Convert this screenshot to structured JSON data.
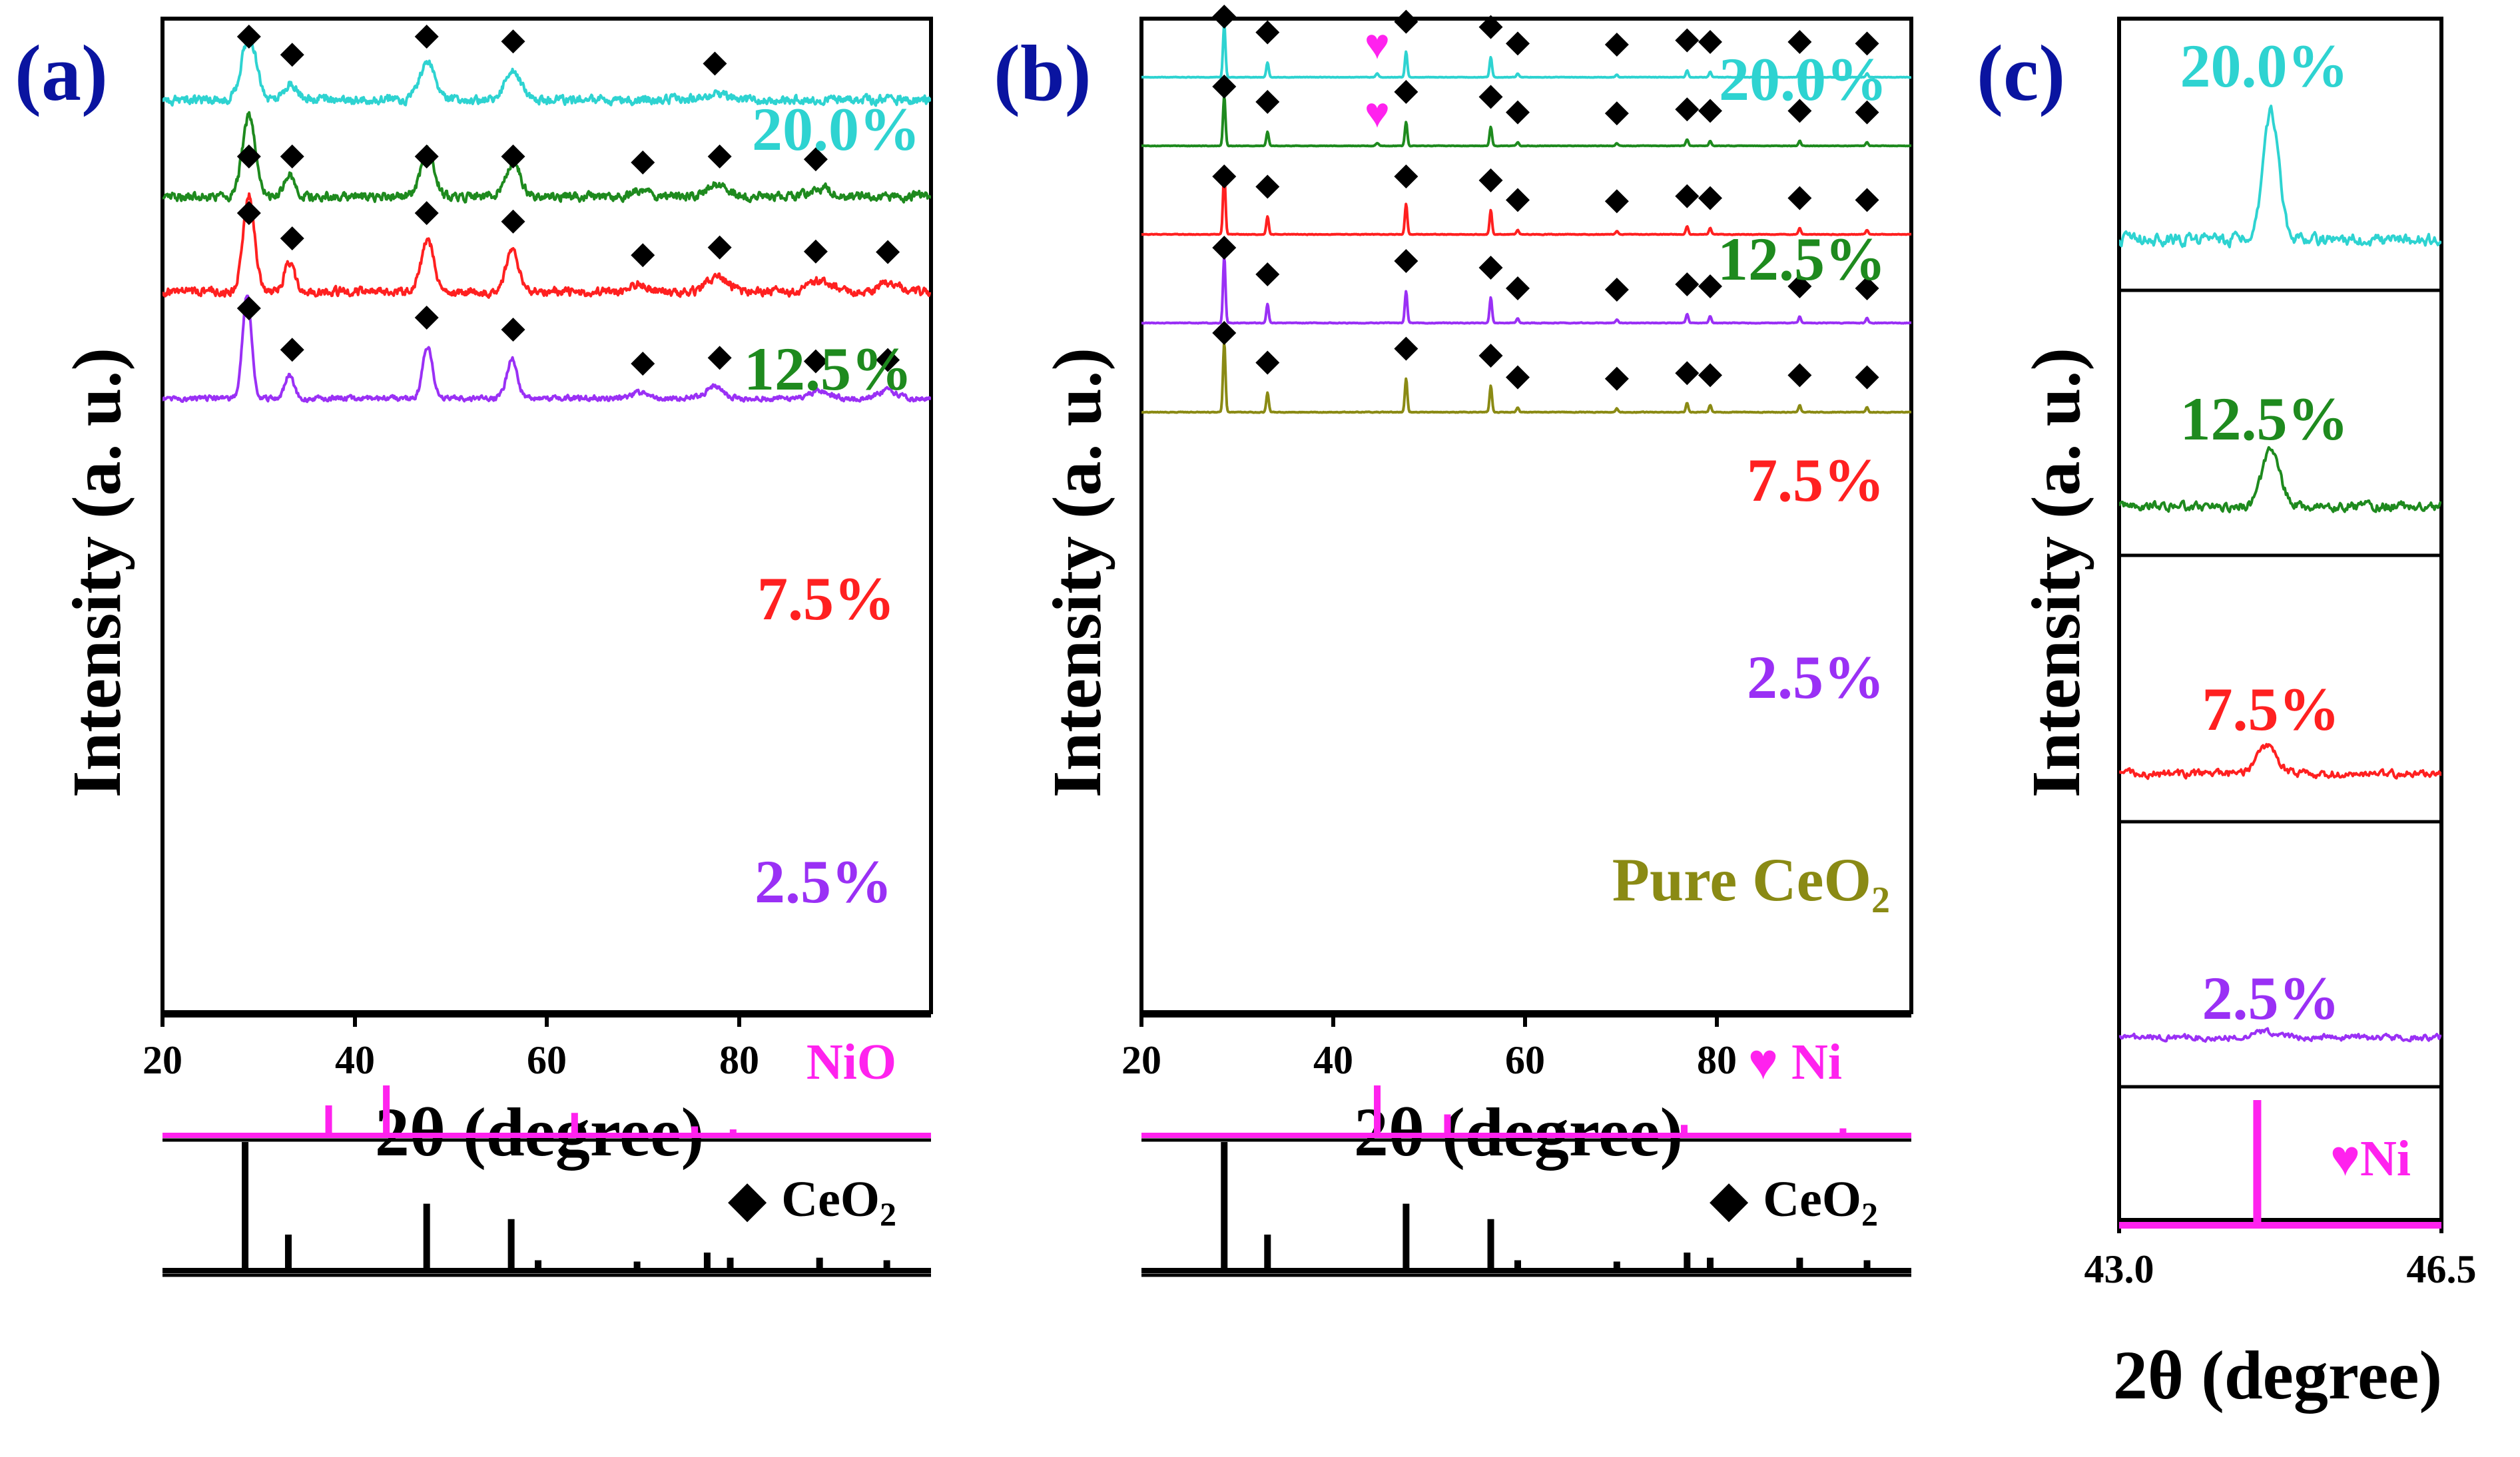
{
  "figure": {
    "colors": {
      "c20": "#2ed3d1",
      "c12": "#1e8a1e",
      "c7": "#ff2020",
      "c2": "#9a30f5",
      "pure": "#8a8a14",
      "ni": "#ff22ee",
      "ceo2": "#000000",
      "panel_label": "#0a14a0"
    },
    "panels": [
      {
        "label": "(a)",
        "ylabel": "Intensity (a. u.)",
        "xlabel": "2θ (degree)",
        "xlim": [
          20,
          100
        ],
        "xticks": [
          "20",
          "40",
          "60",
          "80"
        ],
        "series": [
          {
            "name": "20.0%",
            "color_key": "c20",
            "diamonds": [
              29,
              33.5,
              47.5,
              56.5,
              77.5
            ]
          },
          {
            "name": "12.5%",
            "color_key": "c12",
            "diamonds": [
              29,
              33.5,
              47.5,
              56.5,
              70,
              78,
              88
            ]
          },
          {
            "name": "7.5%",
            "color_key": "c7",
            "diamonds": [
              29,
              33.5,
              47.5,
              56.5,
              70,
              78,
              88,
              95.5
            ]
          },
          {
            "name": "2.5%",
            "color_key": "c2",
            "diamonds": [
              29,
              33.5,
              47.5,
              56.5,
              70,
              78,
              88,
              95.5
            ]
          }
        ],
        "refs": [
          {
            "name": "NiO",
            "color_key": "ni",
            "sticks": [
              [
                37.3,
                0.6
              ],
              [
                43.3,
                1.0
              ],
              [
                62.9,
                0.45
              ],
              [
                75.4,
                0.18
              ],
              [
                79.4,
                0.12
              ],
              [
                95.1,
                0.05
              ]
            ]
          },
          {
            "name": "CeO",
            "sub": "2",
            "symbol": "◆",
            "color_key": "ceo2",
            "sticks": [
              [
                28.6,
                1.0
              ],
              [
                33.1,
                0.28
              ],
              [
                47.5,
                0.52
              ],
              [
                56.3,
                0.4
              ],
              [
                59.1,
                0.08
              ],
              [
                69.4,
                0.07
              ],
              [
                76.7,
                0.14
              ],
              [
                79.1,
                0.1
              ],
              [
                88.4,
                0.1
              ],
              [
                95.4,
                0.08
              ]
            ]
          }
        ]
      },
      {
        "label": "(b)",
        "ylabel": "Intensity (a. u.)",
        "xlabel": "2θ (degree)",
        "xlim": [
          20,
          100
        ],
        "xticks": [
          "20",
          "40",
          "60",
          "80"
        ],
        "series": [
          {
            "name": "20.0%",
            "color_key": "c20",
            "diamonds": [
              28.6,
              33.1,
              47.5,
              56.3,
              59.1,
              69.4,
              76.7,
              79.1,
              88.4,
              95.4
            ],
            "hearts": [
              44.5
            ]
          },
          {
            "name": "12.5%",
            "color_key": "c12",
            "diamonds": [
              28.6,
              33.1,
              47.5,
              56.3,
              59.1,
              69.4,
              76.7,
              79.1,
              88.4,
              95.4
            ],
            "hearts": [
              44.5
            ]
          },
          {
            "name": "7.5%",
            "color_key": "c7",
            "diamonds": [
              28.6,
              33.1,
              47.5,
              56.3,
              59.1,
              69.4,
              76.7,
              79.1,
              88.4,
              95.4
            ]
          },
          {
            "name": "2.5%",
            "color_key": "c2",
            "diamonds": [
              28.6,
              33.1,
              47.5,
              56.3,
              59.1,
              69.4,
              76.7,
              79.1,
              88.4,
              95.4
            ]
          },
          {
            "name": "Pure CeO",
            "sub": "2",
            "color_key": "pure",
            "diamonds": [
              28.6,
              33.1,
              47.5,
              56.3,
              59.1,
              69.4,
              76.7,
              79.1,
              88.4,
              95.4
            ]
          }
        ],
        "refs": [
          {
            "name": "Ni",
            "symbol": "♥",
            "color_key": "ni",
            "sticks": [
              [
                44.5,
                1.0
              ],
              [
                51.8,
                0.42
              ],
              [
                76.4,
                0.21
              ],
              [
                92.9,
                0.14
              ],
              [
                98.4,
                0.05
              ]
            ]
          },
          {
            "name": "CeO",
            "sub": "2",
            "symbol": "◆",
            "color_key": "ceo2",
            "sticks": [
              [
                28.6,
                1.0
              ],
              [
                33.1,
                0.28
              ],
              [
                47.5,
                0.52
              ],
              [
                56.3,
                0.4
              ],
              [
                59.1,
                0.08
              ],
              [
                69.4,
                0.07
              ],
              [
                76.7,
                0.14
              ],
              [
                79.1,
                0.1
              ],
              [
                88.4,
                0.1
              ],
              [
                95.4,
                0.08
              ]
            ]
          }
        ]
      },
      {
        "label": "(c)",
        "ylabel": "Intensity (a. u.)",
        "xlabel": "2θ (degree)",
        "xlim": [
          43.0,
          46.5
        ],
        "xticks": [
          "43.0",
          "46.5"
        ],
        "series": [
          {
            "name": "20.0%",
            "color_key": "c20"
          },
          {
            "name": "12.5%",
            "color_key": "c12"
          },
          {
            "name": "7.5%",
            "color_key": "c7"
          },
          {
            "name": "2.5%",
            "color_key": "c2"
          }
        ],
        "refs": [
          {
            "name": "Ni",
            "symbol": "♥",
            "color_key": "ni",
            "sticks": [
              [
                44.5,
                1.0
              ]
            ]
          }
        ]
      }
    ]
  },
  "chart_data": [
    {
      "type": "line",
      "title": "(a)",
      "xlabel": "2θ (degree)",
      "ylabel": "Intensity (a. u.)",
      "xlim": [
        20,
        100
      ],
      "series": [
        {
          "name": "20.0%",
          "peaks": [
            {
              "x": 29,
              "h": 1.0,
              "w": 1.8
            },
            {
              "x": 33.3,
              "h": 0.25,
              "w": 1.6
            },
            {
              "x": 47.6,
              "h": 0.6,
              "w": 1.9
            },
            {
              "x": 56.5,
              "h": 0.45,
              "w": 2.0
            },
            {
              "x": 77.5,
              "h": 0.1,
              "w": 3.0
            }
          ],
          "noise": 0.11
        },
        {
          "name": "12.5%",
          "peaks": [
            {
              "x": 29,
              "h": 1.0,
              "w": 1.6
            },
            {
              "x": 33.3,
              "h": 0.25,
              "w": 1.4
            },
            {
              "x": 47.6,
              "h": 0.6,
              "w": 1.6
            },
            {
              "x": 56.5,
              "h": 0.45,
              "w": 1.8
            },
            {
              "x": 69.5,
              "h": 0.06,
              "w": 2.0
            },
            {
              "x": 77.8,
              "h": 0.14,
              "w": 2.5
            },
            {
              "x": 88.5,
              "h": 0.1,
              "w": 2.5
            }
          ],
          "noise": 0.09
        },
        {
          "name": "7.5%",
          "peaks": [
            {
              "x": 29,
              "h": 1.0,
              "w": 1.4
            },
            {
              "x": 33.2,
              "h": 0.28,
              "w": 1.3
            },
            {
              "x": 47.6,
              "h": 0.55,
              "w": 1.5
            },
            {
              "x": 56.4,
              "h": 0.42,
              "w": 1.6
            },
            {
              "x": 69.5,
              "h": 0.08,
              "w": 2.0
            },
            {
              "x": 77.8,
              "h": 0.15,
              "w": 2.5
            },
            {
              "x": 88.5,
              "h": 0.12,
              "w": 2.3
            },
            {
              "x": 95.5,
              "h": 0.1,
              "w": 2.3
            }
          ],
          "noise": 0.07
        },
        {
          "name": "2.5%",
          "peaks": [
            {
              "x": 28.8,
              "h": 1.0,
              "w": 1.1
            },
            {
              "x": 33.2,
              "h": 0.22,
              "w": 1.1
            },
            {
              "x": 47.6,
              "h": 0.5,
              "w": 1.2
            },
            {
              "x": 56.4,
              "h": 0.38,
              "w": 1.3
            },
            {
              "x": 69.5,
              "h": 0.06,
              "w": 1.5
            },
            {
              "x": 77.5,
              "h": 0.12,
              "w": 2.0
            },
            {
              "x": 88.5,
              "h": 0.08,
              "w": 2.0
            },
            {
              "x": 95.5,
              "h": 0.08,
              "w": 2.0
            }
          ],
          "noise": 0.04
        }
      ]
    },
    {
      "type": "line",
      "title": "(b)",
      "xlabel": "2θ (degree)",
      "ylabel": "Intensity (a. u.)",
      "xlim": [
        20,
        100
      ],
      "series": [
        {
          "name": "20.0%",
          "peaks": [
            {
              "x": 28.6,
              "h": 1.0,
              "w": 0.3
            },
            {
              "x": 33.1,
              "h": 0.28,
              "w": 0.3
            },
            {
              "x": 44.5,
              "h": 0.07,
              "w": 0.35
            },
            {
              "x": 47.5,
              "h": 0.48,
              "w": 0.3
            },
            {
              "x": 56.3,
              "h": 0.38,
              "w": 0.3
            },
            {
              "x": 59.1,
              "h": 0.07,
              "w": 0.3
            },
            {
              "x": 69.4,
              "h": 0.05,
              "w": 0.3
            },
            {
              "x": 76.7,
              "h": 0.13,
              "w": 0.3
            },
            {
              "x": 79.1,
              "h": 0.1,
              "w": 0.3
            },
            {
              "x": 88.4,
              "h": 0.1,
              "w": 0.3
            },
            {
              "x": 95.4,
              "h": 0.07,
              "w": 0.3
            }
          ],
          "noise": 0.008
        },
        {
          "name": "12.5%",
          "peaks": [
            {
              "x": 28.6,
              "h": 1.0,
              "w": 0.3
            },
            {
              "x": 33.1,
              "h": 0.28,
              "w": 0.3
            },
            {
              "x": 44.5,
              "h": 0.05,
              "w": 0.35
            },
            {
              "x": 47.5,
              "h": 0.48,
              "w": 0.3
            },
            {
              "x": 56.3,
              "h": 0.38,
              "w": 0.3
            },
            {
              "x": 59.1,
              "h": 0.07,
              "w": 0.3
            },
            {
              "x": 69.4,
              "h": 0.05,
              "w": 0.3
            },
            {
              "x": 76.7,
              "h": 0.13,
              "w": 0.3
            },
            {
              "x": 79.1,
              "h": 0.1,
              "w": 0.3
            },
            {
              "x": 88.4,
              "h": 0.1,
              "w": 0.3
            },
            {
              "x": 95.4,
              "h": 0.07,
              "w": 0.3
            }
          ],
          "noise": 0.008
        },
        {
          "name": "7.5%",
          "peaks": [
            {
              "x": 28.6,
              "h": 1.0,
              "w": 0.3
            },
            {
              "x": 33.1,
              "h": 0.28,
              "w": 0.3
            },
            {
              "x": 47.5,
              "h": 0.48,
              "w": 0.3
            },
            {
              "x": 56.3,
              "h": 0.38,
              "w": 0.3
            },
            {
              "x": 59.1,
              "h": 0.07,
              "w": 0.3
            },
            {
              "x": 69.4,
              "h": 0.05,
              "w": 0.3
            },
            {
              "x": 76.7,
              "h": 0.13,
              "w": 0.3
            },
            {
              "x": 79.1,
              "h": 0.1,
              "w": 0.3
            },
            {
              "x": 88.4,
              "h": 0.1,
              "w": 0.3
            },
            {
              "x": 95.4,
              "h": 0.07,
              "w": 0.3
            }
          ],
          "noise": 0.008
        },
        {
          "name": "2.5%",
          "peaks": [
            {
              "x": 28.6,
              "h": 1.0,
              "w": 0.3
            },
            {
              "x": 33.1,
              "h": 0.28,
              "w": 0.3
            },
            {
              "x": 47.5,
              "h": 0.48,
              "w": 0.3
            },
            {
              "x": 56.3,
              "h": 0.38,
              "w": 0.3
            },
            {
              "x": 59.1,
              "h": 0.07,
              "w": 0.3
            },
            {
              "x": 69.4,
              "h": 0.05,
              "w": 0.3
            },
            {
              "x": 76.7,
              "h": 0.13,
              "w": 0.3
            },
            {
              "x": 79.1,
              "h": 0.1,
              "w": 0.3
            },
            {
              "x": 88.4,
              "h": 0.1,
              "w": 0.3
            },
            {
              "x": 95.4,
              "h": 0.07,
              "w": 0.3
            }
          ],
          "noise": 0.008
        },
        {
          "name": "Pure CeO2",
          "peaks": [
            {
              "x": 28.6,
              "h": 1.0,
              "w": 0.3
            },
            {
              "x": 33.1,
              "h": 0.28,
              "w": 0.3
            },
            {
              "x": 47.5,
              "h": 0.48,
              "w": 0.3
            },
            {
              "x": 56.3,
              "h": 0.38,
              "w": 0.3
            },
            {
              "x": 59.1,
              "h": 0.07,
              "w": 0.3
            },
            {
              "x": 69.4,
              "h": 0.05,
              "w": 0.3
            },
            {
              "x": 76.7,
              "h": 0.13,
              "w": 0.3
            },
            {
              "x": 79.1,
              "h": 0.1,
              "w": 0.3
            },
            {
              "x": 88.4,
              "h": 0.1,
              "w": 0.3
            },
            {
              "x": 95.4,
              "h": 0.07,
              "w": 0.3
            }
          ],
          "noise": 0.008
        }
      ]
    },
    {
      "type": "line",
      "title": "(c)",
      "xlabel": "2θ (degree)",
      "ylabel": "Intensity (a. u.)",
      "xlim": [
        43.0,
        46.5
      ],
      "series": [
        {
          "name": "20.0%",
          "peaks": [
            {
              "x": 44.65,
              "h": 1.0,
              "w": 0.2
            }
          ],
          "noise": 0.08
        },
        {
          "name": "12.5%",
          "peaks": [
            {
              "x": 44.65,
              "h": 0.45,
              "w": 0.22
            }
          ],
          "noise": 0.06
        },
        {
          "name": "7.5%",
          "peaks": [
            {
              "x": 44.6,
              "h": 0.22,
              "w": 0.25
            }
          ],
          "noise": 0.05
        },
        {
          "name": "2.5%",
          "peaks": [
            {
              "x": 44.6,
              "h": 0.05,
              "w": 0.3
            }
          ],
          "noise": 0.04
        }
      ]
    }
  ]
}
